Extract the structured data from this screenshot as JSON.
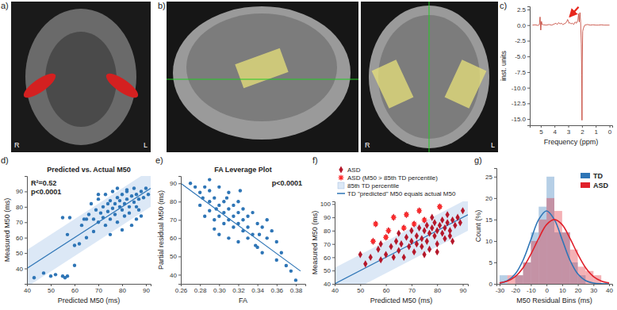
{
  "images": [
    {
      "label": "a)",
      "orientation": [
        "R",
        "L"
      ]
    },
    {
      "label": "b)",
      "orientation": [
        "R",
        "L"
      ]
    }
  ],
  "chart_data": [
    {
      "type": "line",
      "panel": "c)",
      "x_label": "Frequency (ppm)",
      "y_label": "inst. units",
      "xlim": [
        5.8,
        -0.2
      ],
      "ylim": [
        -16,
        3
      ],
      "xticks": [
        5,
        4,
        3,
        2,
        1,
        0
      ],
      "yticks": [
        2.5,
        {
          "value": 0,
          "label": "0.0"
        },
        -2.5,
        {
          "value": -5,
          "label": "-5.0"
        },
        -7.5,
        {
          "value": -10,
          "label": "-10.0"
        },
        -12.5,
        {
          "value": -15,
          "label": "-15.0"
        }
      ],
      "color": "#c0392b",
      "x": [
        5.6,
        5.4,
        5.2,
        5.1,
        5.05,
        5.0,
        4.95,
        4.9,
        4.8,
        4.6,
        4.4,
        4.2,
        4.0,
        3.9,
        3.8,
        3.7,
        3.6,
        3.5,
        3.4,
        3.3,
        3.2,
        3.1,
        3.05,
        3.0,
        2.95,
        2.9,
        2.8,
        2.7,
        2.6,
        2.5,
        2.4,
        2.3,
        2.25,
        2.2,
        2.15,
        2.1,
        2.05,
        2.02,
        2.0,
        1.98,
        1.95,
        1.9,
        1.8,
        1.6,
        1.4,
        1.2,
        1.0,
        0.8,
        0.6,
        0.4,
        0.2,
        0.0
      ],
      "values": [
        0,
        0.05,
        -0.05,
        0.1,
        1.3,
        -0.8,
        0.6,
        0.1,
        0.05,
        0,
        0.1,
        0,
        0.2,
        0.3,
        0.1,
        0.4,
        0.2,
        0.3,
        0.1,
        0.2,
        0.3,
        0.6,
        0.9,
        0.7,
        0.3,
        0.4,
        0.2,
        0.3,
        0.1,
        0.5,
        0.3,
        0.8,
        1.8,
        0.5,
        2.0,
        0.5,
        -3,
        -8,
        -15.2,
        -6,
        -1,
        -0.5,
        0,
        0.1,
        0,
        0.05,
        0,
        0,
        0.05,
        0,
        0,
        0
      ],
      "arrow": {
        "x": 3.0,
        "y": 1.0
      }
    },
    {
      "type": "scatter",
      "panel": "d)",
      "title": "Predicted vs. Actual M50",
      "annotations": [
        "R²=0.52",
        "p<0.0001"
      ],
      "x_label": "Predicted M50 (ms)",
      "y_label": "Measured M50 (ms)",
      "xlim": [
        40,
        92
      ],
      "ylim": [
        30,
        100
      ],
      "xticks": [
        40,
        50,
        60,
        70,
        80,
        90
      ],
      "yticks": [
        40,
        50,
        60,
        70,
        80,
        90
      ],
      "color": "#2e75b6",
      "marker": "circle",
      "x": [
        43,
        47,
        50,
        52,
        55,
        56,
        57,
        55,
        58,
        60,
        62,
        57,
        63,
        64,
        65,
        66,
        67,
        68,
        68,
        69,
        70,
        70,
        71,
        72,
        72,
        73,
        73,
        74,
        74,
        75,
        75,
        76,
        76,
        77,
        77,
        78,
        78,
        79,
        79,
        80,
        80,
        80,
        81,
        81,
        82,
        82,
        83,
        83,
        84,
        84,
        85,
        85,
        86,
        86,
        87,
        87,
        88,
        88,
        89,
        90,
        91,
        86,
        75,
        78,
        82,
        70,
        65,
        60
      ],
      "values": [
        34,
        37,
        35,
        36,
        35,
        34,
        35,
        73,
        73,
        55,
        56,
        62,
        68,
        72,
        60,
        75,
        82,
        72,
        64,
        78,
        70,
        85,
        76,
        80,
        73,
        68,
        88,
        77,
        82,
        72,
        84,
        79,
        90,
        75,
        82,
        86,
        70,
        80,
        84,
        78,
        88,
        65,
        82,
        74,
        85,
        90,
        80,
        76,
        87,
        68,
        83,
        92,
        80,
        88,
        78,
        85,
        90,
        74,
        86,
        92,
        88,
        72,
        62,
        92,
        91,
        88,
        72,
        42
      ],
      "band": {
        "color": "#dce8f6",
        "x": [
          40,
          92
        ],
        "lower": [
          28,
          80
        ],
        "upper": [
          52,
          104
        ]
      },
      "fit": {
        "color": "#2e75b6",
        "x": [
          40,
          92
        ],
        "values": [
          40,
          92
        ]
      }
    },
    {
      "type": "scatter",
      "panel": "e)",
      "title": "FA Leverage Plot",
      "annotations": [
        "p<0.0001"
      ],
      "x_label": "FA",
      "y_label": "Partial residual M50 (ms)",
      "xlim": [
        0.26,
        0.39
      ],
      "ylim": [
        35,
        94
      ],
      "xticks": [
        0.26,
        0.28,
        {
          "value": 0.3,
          "label": "0.30"
        },
        0.32,
        0.34,
        0.36,
        0.38
      ],
      "yticks": [
        40,
        50,
        60,
        70,
        80,
        90
      ],
      "color": "#2e75b6",
      "marker": "circle",
      "x": [
        0.27,
        0.275,
        0.28,
        0.28,
        0.285,
        0.285,
        0.29,
        0.29,
        0.29,
        0.295,
        0.295,
        0.295,
        0.3,
        0.3,
        0.3,
        0.3,
        0.305,
        0.305,
        0.305,
        0.31,
        0.31,
        0.31,
        0.31,
        0.315,
        0.315,
        0.315,
        0.32,
        0.32,
        0.32,
        0.32,
        0.325,
        0.325,
        0.325,
        0.33,
        0.33,
        0.33,
        0.335,
        0.335,
        0.34,
        0.34,
        0.345,
        0.345,
        0.35,
        0.35,
        0.36,
        0.36,
        0.37,
        0.375,
        0.38,
        0.29,
        0.283,
        0.297,
        0.308,
        0.322,
        0.338,
        0.342,
        0.355,
        0.365
      ],
      "values": [
        90,
        88,
        85,
        78,
        88,
        72,
        86,
        80,
        75,
        82,
        70,
        65,
        88,
        78,
        72,
        62,
        80,
        74,
        68,
        85,
        76,
        70,
        60,
        78,
        72,
        66,
        80,
        74,
        68,
        58,
        76,
        70,
        64,
        72,
        66,
        60,
        74,
        62,
        68,
        55,
        66,
        52,
        60,
        70,
        48,
        58,
        45,
        42,
        37,
        92,
        82,
        76,
        82,
        86,
        56,
        62,
        64,
        52
      ],
      "fit": {
        "color": "#2e75b6",
        "x": [
          0.26,
          0.385
        ],
        "values": [
          90,
          42
        ]
      }
    },
    {
      "type": "scatter",
      "panel": "f)",
      "x_label": "Predicted M50 (ms)",
      "y_label": "Measured M50 (ms)",
      "xlim": [
        40,
        92
      ],
      "ylim": [
        40,
        102
      ],
      "xticks": [
        40,
        50,
        60,
        70,
        80,
        90
      ],
      "yticks": [
        40,
        50,
        60,
        70,
        80,
        90,
        100
      ],
      "legend": "upper left",
      "series": [
        {
          "name": "ASD",
          "color": "#b5172a",
          "marker": "diamond",
          "x": [
            50,
            52,
            54,
            55,
            56,
            57,
            58,
            58,
            60,
            60,
            61,
            62,
            63,
            63,
            64,
            65,
            65,
            66,
            67,
            67,
            68,
            68,
            69,
            70,
            70,
            71,
            71,
            72,
            72,
            73,
            73,
            74,
            74,
            75,
            75,
            76,
            76,
            77,
            77,
            78,
            78,
            79,
            79,
            80,
            80,
            81,
            81,
            82,
            82,
            83,
            83,
            84,
            84,
            85,
            85,
            86,
            87,
            88,
            89,
            90,
            86,
            80,
            75
          ],
          "values": [
            62,
            55,
            60,
            72,
            85,
            66,
            70,
            58,
            62,
            75,
            80,
            68,
            60,
            90,
            72,
            78,
            65,
            70,
            60,
            82,
            75,
            92,
            68,
            72,
            80,
            64,
            85,
            76,
            70,
            82,
            95,
            74,
            68,
            80,
            88,
            72,
            84,
            78,
            66,
            82,
            90,
            76,
            86,
            80,
            70,
            84,
            98,
            78,
            88,
            82,
            74,
            86,
            92,
            80,
            76,
            88,
            84,
            90,
            86,
            95,
            72,
            64,
            62
          ]
        },
        {
          "name": "ASD (M50 > 85th TD percentile)",
          "color": "#ff2a2a",
          "marker": "asterisk",
          "x": [
            55,
            56,
            60,
            61,
            63,
            67,
            68,
            71,
            73,
            75,
            81
          ],
          "values": [
            72,
            85,
            75,
            80,
            90,
            82,
            92,
            85,
            95,
            88,
            98
          ]
        }
      ],
      "band": {
        "name": "85th TD percentile",
        "color": "#dce8f6",
        "x": [
          40,
          92
        ],
        "lower": [
          28,
          80
        ],
        "upper": [
          52,
          104
        ]
      },
      "fit": {
        "name": "TD \"predicted\" M50 equals actual M50",
        "color": "#2e75b6",
        "x": [
          40,
          92
        ],
        "values": [
          40,
          92
        ]
      }
    },
    {
      "type": "histogram",
      "panel": "g)",
      "x_label": "M50 Residual Bins (ms)",
      "y_label": "Count (%)",
      "xlim": [
        -32,
        42
      ],
      "ylim": [
        0,
        27
      ],
      "xticks": [
        -30,
        -20,
        -10,
        0,
        10,
        20,
        30,
        40
      ],
      "yticks": [
        0,
        5,
        10,
        15,
        20,
        25
      ],
      "legend": "upper right",
      "bins": [
        -30,
        -25,
        -20,
        -15,
        -10,
        -5,
        0,
        5,
        10,
        15,
        20,
        25,
        30,
        35,
        40
      ],
      "curve_x": [
        -30,
        -25,
        -20,
        -15,
        -10,
        -5,
        0,
        5,
        10,
        15,
        20,
        25,
        30,
        35,
        40
      ],
      "series": [
        {
          "name": "TD",
          "color": "#2e75b6",
          "values": [
            2,
            0,
            2,
            5,
            12,
            18,
            25,
            12,
            12,
            5,
            2,
            0,
            0,
            0
          ],
          "curve": [
            0.19,
            0.75,
            2.3,
            5.5,
            10.3,
            15,
            17,
            15,
            10.3,
            5.5,
            2.3,
            0.75,
            0.19,
            0.04,
            0.01
          ]
        },
        {
          "name": "ASD",
          "color": "#e0202a",
          "values": [
            0,
            2,
            2,
            5,
            10,
            15,
            20,
            17,
            12,
            8,
            4,
            3,
            2,
            0
          ],
          "curve": [
            0.21,
            0.66,
            1.7,
            3.75,
            6.9,
            10.6,
            13.8,
            15,
            13.8,
            10.6,
            6.9,
            3.75,
            1.7,
            0.66,
            0.21
          ]
        }
      ]
    }
  ]
}
